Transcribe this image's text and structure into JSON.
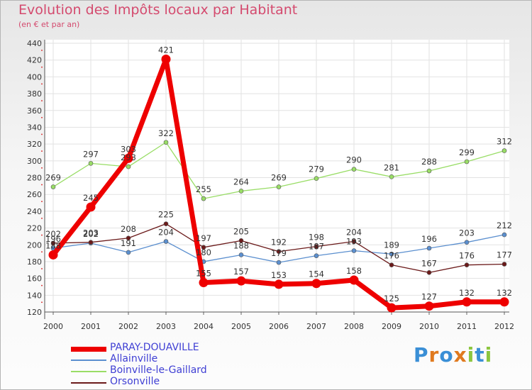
{
  "title": "Evolution des Impôts locaux par Habitant",
  "subtitle": "(en € et par an)",
  "logo": {
    "text": "Proxiti",
    "letters": [
      "P",
      "r",
      "o",
      "x",
      "i",
      "t",
      "i"
    ],
    "colors": [
      "#3a8fd6",
      "#e07a1f",
      "#3a8fd6",
      "#e07a1f",
      "#8cc63f",
      "#3a8fd6",
      "#8cc63f"
    ]
  },
  "chart_data": {
    "type": "line",
    "title": "Evolution des Impôts locaux par Habitant",
    "ylabel": "(en € et par an)",
    "xlabel": "",
    "x": [
      "2000",
      "2001",
      "2002",
      "2003",
      "2004",
      "2005",
      "2006",
      "2007",
      "2008",
      "2009",
      "2010",
      "2011",
      "2012"
    ],
    "ylim": [
      120,
      440
    ],
    "yticks": [
      "120",
      "140",
      "160",
      "180",
      "200",
      "220",
      "240",
      "260",
      "280",
      "300",
      "320",
      "340",
      "360",
      "380",
      "400",
      "420",
      "440"
    ],
    "grid": true,
    "series": [
      {
        "name": "PARAY-DOUAVILLE",
        "color": "#ee0000",
        "bold": true,
        "values": [
          188,
          245,
          303,
          421,
          155,
          157,
          153,
          154,
          158,
          125,
          127,
          132,
          132
        ],
        "labels": [
          "188",
          "245",
          "303",
          "421",
          "155",
          "157",
          "153",
          "154",
          "158",
          "125",
          "127",
          "132",
          "132"
        ]
      },
      {
        "name": "Allainville",
        "color": "#5b8fcf",
        "bold": false,
        "values": [
          196,
          202,
          191,
          204,
          180,
          188,
          179,
          187,
          193,
          189,
          196,
          203,
          212
        ],
        "labels": [
          "196",
          "202",
          "191",
          "204",
          "180",
          "188",
          "179",
          "187",
          "193",
          "189",
          "196",
          "203",
          "212"
        ]
      },
      {
        "name": "Boinville-le-Gaillard",
        "color": "#99dd66",
        "bold": false,
        "values": [
          269,
          297,
          293,
          322,
          255,
          264,
          269,
          279,
          290,
          281,
          288,
          299,
          312
        ],
        "labels": [
          "269",
          "297",
          "293",
          "322",
          "255",
          "264",
          "269",
          "279",
          "290",
          "281",
          "288",
          "299",
          "312"
        ]
      },
      {
        "name": "Orsonville",
        "color": "#6b1a1a",
        "bold": false,
        "values": [
          202,
          203,
          208,
          225,
          197,
          205,
          192,
          198,
          204,
          176,
          167,
          176,
          177
        ],
        "labels": [
          "202",
          "203",
          "208",
          "225",
          "197",
          "205",
          "192",
          "198",
          "204",
          "176",
          "167",
          "176",
          "177"
        ]
      }
    ],
    "legend_position": "bottom-left"
  }
}
